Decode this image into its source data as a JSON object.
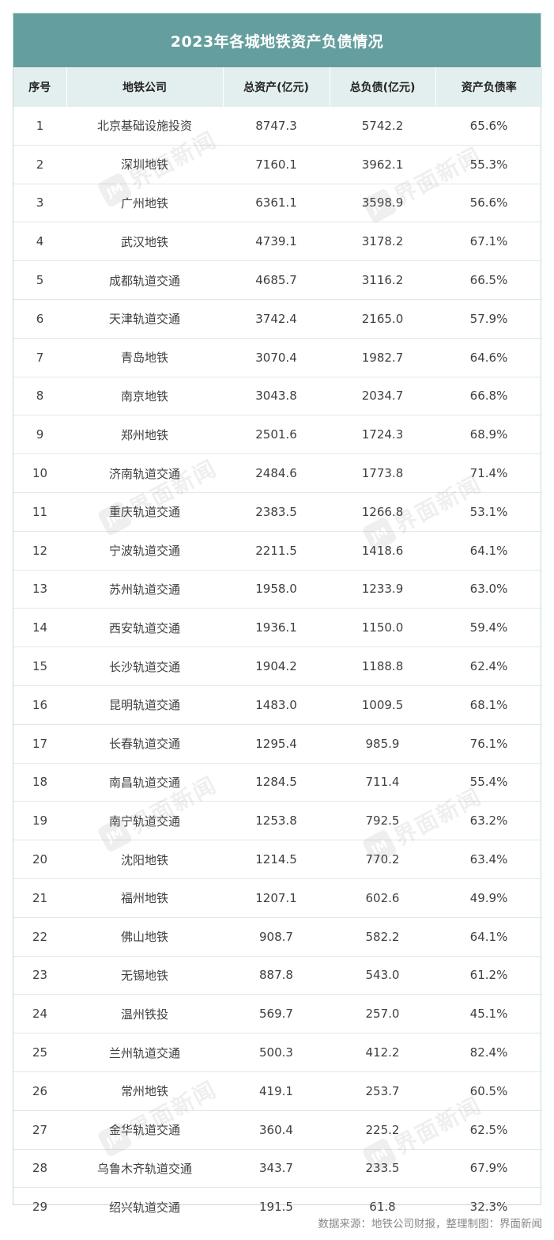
{
  "title": "2023年各城地铁资产负债情况",
  "headers": {
    "rank": "序号",
    "company": "地铁公司",
    "total_assets": "总资产(亿元)",
    "total_liabilities": "总负债(亿元)",
    "debt_ratio": "资产负债率"
  },
  "rows": [
    {
      "rank": "1",
      "company": "北京基础设施投资",
      "assets": "8747.3",
      "liabilities": "5742.2",
      "ratio": "65.6%"
    },
    {
      "rank": "2",
      "company": "深圳地铁",
      "assets": "7160.1",
      "liabilities": "3962.1",
      "ratio": "55.3%"
    },
    {
      "rank": "3",
      "company": "广州地铁",
      "assets": "6361.1",
      "liabilities": "3598.9",
      "ratio": "56.6%"
    },
    {
      "rank": "4",
      "company": "武汉地铁",
      "assets": "4739.1",
      "liabilities": "3178.2",
      "ratio": "67.1%"
    },
    {
      "rank": "5",
      "company": "成都轨道交通",
      "assets": "4685.7",
      "liabilities": "3116.2",
      "ratio": "66.5%"
    },
    {
      "rank": "6",
      "company": "天津轨道交通",
      "assets": "3742.4",
      "liabilities": "2165.0",
      "ratio": "57.9%"
    },
    {
      "rank": "7",
      "company": "青岛地铁",
      "assets": "3070.4",
      "liabilities": "1982.7",
      "ratio": "64.6%"
    },
    {
      "rank": "8",
      "company": "南京地铁",
      "assets": "3043.8",
      "liabilities": "2034.7",
      "ratio": "66.8%"
    },
    {
      "rank": "9",
      "company": "郑州地铁",
      "assets": "2501.6",
      "liabilities": "1724.3",
      "ratio": "68.9%"
    },
    {
      "rank": "10",
      "company": "济南轨道交通",
      "assets": "2484.6",
      "liabilities": "1773.8",
      "ratio": "71.4%"
    },
    {
      "rank": "11",
      "company": "重庆轨道交通",
      "assets": "2383.5",
      "liabilities": "1266.8",
      "ratio": "53.1%"
    },
    {
      "rank": "12",
      "company": "宁波轨道交通",
      "assets": "2211.5",
      "liabilities": "1418.6",
      "ratio": "64.1%"
    },
    {
      "rank": "13",
      "company": "苏州轨道交通",
      "assets": "1958.0",
      "liabilities": "1233.9",
      "ratio": "63.0%"
    },
    {
      "rank": "14",
      "company": "西安轨道交通",
      "assets": "1936.1",
      "liabilities": "1150.0",
      "ratio": "59.4%"
    },
    {
      "rank": "15",
      "company": "长沙轨道交通",
      "assets": "1904.2",
      "liabilities": "1188.8",
      "ratio": "62.4%"
    },
    {
      "rank": "16",
      "company": "昆明轨道交通",
      "assets": "1483.0",
      "liabilities": "1009.5",
      "ratio": "68.1%"
    },
    {
      "rank": "17",
      "company": "长春轨道交通",
      "assets": "1295.4",
      "liabilities": "985.9",
      "ratio": "76.1%"
    },
    {
      "rank": "18",
      "company": "南昌轨道交通",
      "assets": "1284.5",
      "liabilities": "711.4",
      "ratio": "55.4%"
    },
    {
      "rank": "19",
      "company": "南宁轨道交通",
      "assets": "1253.8",
      "liabilities": "792.5",
      "ratio": "63.2%"
    },
    {
      "rank": "20",
      "company": "沈阳地铁",
      "assets": "1214.5",
      "liabilities": "770.2",
      "ratio": "63.4%"
    },
    {
      "rank": "21",
      "company": "福州地铁",
      "assets": "1207.1",
      "liabilities": "602.6",
      "ratio": "49.9%"
    },
    {
      "rank": "22",
      "company": "佛山地铁",
      "assets": "908.7",
      "liabilities": "582.2",
      "ratio": "64.1%"
    },
    {
      "rank": "23",
      "company": "无锡地铁",
      "assets": "887.8",
      "liabilities": "543.0",
      "ratio": "61.2%"
    },
    {
      "rank": "24",
      "company": "温州铁投",
      "assets": "569.7",
      "liabilities": "257.0",
      "ratio": "45.1%"
    },
    {
      "rank": "25",
      "company": "兰州轨道交通",
      "assets": "500.3",
      "liabilities": "412.2",
      "ratio": "82.4%"
    },
    {
      "rank": "26",
      "company": "常州地铁",
      "assets": "419.1",
      "liabilities": "253.7",
      "ratio": "60.5%"
    },
    {
      "rank": "27",
      "company": "金华轨道交通",
      "assets": "360.4",
      "liabilities": "225.2",
      "ratio": "62.5%"
    },
    {
      "rank": "28",
      "company": "乌鲁木齐轨道交通",
      "assets": "343.7",
      "liabilities": "233.5",
      "ratio": "67.9%"
    },
    {
      "rank": "29",
      "company": "绍兴轨道交通",
      "assets": "191.5",
      "liabilities": "61.8",
      "ratio": "32.3%"
    }
  ],
  "footer": {
    "source": "数据来源：地铁公司财报，整理制图：界面新闻"
  },
  "watermark": {
    "text": "界面新闻",
    "logo_glyph": "JM"
  },
  "colors": {
    "title_bg": "#659e9e",
    "header_bg": "#e3eeee"
  }
}
